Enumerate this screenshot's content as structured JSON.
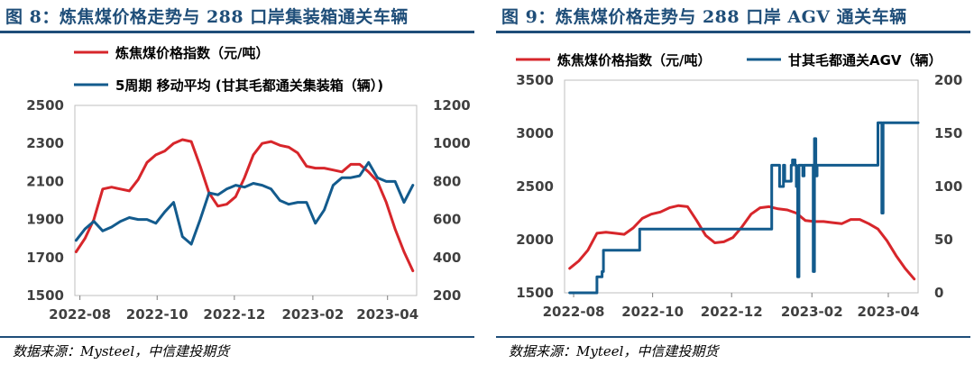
{
  "figures": [
    {
      "title": "图 8：炼焦煤价格走势与 288 口岸集装箱通关车辆",
      "source": "数据来源：Mysteel，中信建投期货"
    },
    {
      "title": "图 9：炼焦煤价格走势与 288 口岸 AGV 通关车辆",
      "source": "数据来源：Myteel，中信建投期货"
    }
  ],
  "colors": {
    "price": "#d7262b",
    "secondary": "#135b8d",
    "title": "#1f4e79"
  },
  "chart_data": [
    {
      "type": "line",
      "x_type": "date",
      "xticks": [
        "2022-08",
        "2022-10",
        "2022-12",
        "2023-02",
        "2023-04"
      ],
      "xlim": [
        "2022-07-28",
        "2023-04-24"
      ],
      "y_left": {
        "min": 1500,
        "max": 2500,
        "ticks": [
          1500,
          1700,
          1900,
          2100,
          2300,
          2500
        ]
      },
      "y_right": {
        "min": 200,
        "max": 1200,
        "ticks": [
          200,
          400,
          600,
          800,
          1000,
          1200
        ]
      },
      "legend_position": "top",
      "grid": false,
      "series": [
        {
          "name": "炼焦煤价格指数（元/吨）",
          "axis": "left",
          "color": "#d7262b",
          "x": [
            "2022-07-29",
            "2022-08-05",
            "2022-08-12",
            "2022-08-19",
            "2022-08-26",
            "2022-09-02",
            "2022-09-09",
            "2022-09-16",
            "2022-09-23",
            "2022-09-30",
            "2022-10-07",
            "2022-10-14",
            "2022-10-21",
            "2022-10-28",
            "2022-11-04",
            "2022-11-11",
            "2022-11-18",
            "2022-11-25",
            "2022-12-02",
            "2022-12-09",
            "2022-12-16",
            "2022-12-23",
            "2022-12-30",
            "2023-01-06",
            "2023-01-13",
            "2023-01-20",
            "2023-01-27",
            "2023-02-03",
            "2023-02-10",
            "2023-02-17",
            "2023-02-24",
            "2023-03-03",
            "2023-03-10",
            "2023-03-17",
            "2023-03-24",
            "2023-03-31",
            "2023-04-07",
            "2023-04-14",
            "2023-04-21"
          ],
          "y": [
            1730,
            1800,
            1900,
            2060,
            2070,
            2060,
            2050,
            2110,
            2200,
            2240,
            2260,
            2300,
            2320,
            2310,
            2180,
            2040,
            1970,
            1980,
            2020,
            2120,
            2240,
            2300,
            2310,
            2290,
            2280,
            2250,
            2180,
            2170,
            2170,
            2160,
            2150,
            2190,
            2190,
            2150,
            2100,
            1990,
            1850,
            1730,
            1630
          ]
        },
        {
          "name": "5周期 移动平均 (甘其毛都通关集装箱（辆）)",
          "axis": "right",
          "color": "#135b8d",
          "x": [
            "2022-07-29",
            "2022-08-05",
            "2022-08-12",
            "2022-08-19",
            "2022-08-26",
            "2022-09-02",
            "2022-09-09",
            "2022-09-16",
            "2022-09-23",
            "2022-09-30",
            "2022-10-07",
            "2022-10-14",
            "2022-10-21",
            "2022-10-28",
            "2022-11-04",
            "2022-11-11",
            "2022-11-18",
            "2022-11-25",
            "2022-12-02",
            "2022-12-09",
            "2022-12-16",
            "2022-12-23",
            "2022-12-30",
            "2023-01-06",
            "2023-01-13",
            "2023-01-20",
            "2023-01-27",
            "2023-02-03",
            "2023-02-10",
            "2023-02-17",
            "2023-02-24",
            "2023-03-03",
            "2023-03-10",
            "2023-03-17",
            "2023-03-24",
            "2023-03-31",
            "2023-04-07",
            "2023-04-14",
            "2023-04-21"
          ],
          "y": [
            490,
            550,
            590,
            540,
            560,
            590,
            610,
            600,
            600,
            580,
            640,
            690,
            510,
            470,
            600,
            740,
            730,
            760,
            780,
            770,
            790,
            780,
            760,
            700,
            680,
            690,
            690,
            580,
            650,
            780,
            820,
            820,
            830,
            900,
            820,
            800,
            800,
            690,
            780
          ]
        }
      ]
    },
    {
      "type": "line",
      "x_type": "date",
      "xticks": [
        "2022-08",
        "2022-10",
        "2022-12",
        "2023-02",
        "2023-04"
      ],
      "xlim": [
        "2022-07-25",
        "2023-04-24"
      ],
      "y_left": {
        "min": 1500,
        "max": 3500,
        "ticks": [
          1500,
          2000,
          2500,
          3000,
          3500
        ]
      },
      "y_right": {
        "min": 0,
        "max": 200,
        "ticks": [
          0,
          50,
          100,
          150,
          200
        ]
      },
      "legend_position": "top",
      "grid": false,
      "series": [
        {
          "name": "炼焦煤价格指数（元/吨）",
          "axis": "left",
          "color": "#d7262b",
          "x": [
            "2022-07-29",
            "2022-08-05",
            "2022-08-12",
            "2022-08-19",
            "2022-08-26",
            "2022-09-02",
            "2022-09-09",
            "2022-09-16",
            "2022-09-23",
            "2022-09-30",
            "2022-10-07",
            "2022-10-14",
            "2022-10-21",
            "2022-10-28",
            "2022-11-04",
            "2022-11-11",
            "2022-11-18",
            "2022-11-25",
            "2022-12-02",
            "2022-12-09",
            "2022-12-16",
            "2022-12-23",
            "2022-12-30",
            "2023-01-06",
            "2023-01-13",
            "2023-01-20",
            "2023-01-27",
            "2023-02-03",
            "2023-02-10",
            "2023-02-17",
            "2023-02-24",
            "2023-03-03",
            "2023-03-10",
            "2023-03-17",
            "2023-03-24",
            "2023-03-31",
            "2023-04-07",
            "2023-04-14",
            "2023-04-21"
          ],
          "y": [
            1730,
            1800,
            1900,
            2060,
            2070,
            2060,
            2050,
            2110,
            2200,
            2240,
            2260,
            2300,
            2320,
            2310,
            2180,
            2040,
            1970,
            1980,
            2020,
            2120,
            2240,
            2300,
            2310,
            2290,
            2280,
            2250,
            2180,
            2170,
            2170,
            2160,
            2150,
            2190,
            2190,
            2150,
            2100,
            1990,
            1850,
            1730,
            1630
          ]
        },
        {
          "name": "甘其毛都通关AGV（辆）",
          "axis": "right",
          "color": "#135b8d",
          "x": [
            "2022-07-29",
            "2022-08-18",
            "2022-08-19",
            "2022-08-23",
            "2022-08-24",
            "2022-09-20",
            "2022-09-21",
            "2022-12-31",
            "2023-01-01",
            "2023-01-06",
            "2023-01-07",
            "2023-01-10",
            "2023-01-11",
            "2023-01-16",
            "2023-01-17",
            "2023-01-19",
            "2023-01-20",
            "2023-01-21",
            "2023-01-22",
            "2023-01-24",
            "2023-01-25",
            "2023-01-26",
            "2023-02-01",
            "2023-02-02",
            "2023-02-03",
            "2023-02-04",
            "2023-02-05",
            "2023-03-23",
            "2023-03-24",
            "2023-03-25",
            "2023-03-27",
            "2023-03-28",
            "2023-03-29",
            "2023-04-24"
          ],
          "y": [
            0,
            0,
            15,
            20,
            40,
            40,
            60,
            60,
            120,
            120,
            100,
            120,
            105,
            120,
            125,
            120,
            100,
            15,
            120,
            120,
            110,
            120,
            120,
            20,
            145,
            110,
            120,
            120,
            160,
            160,
            75,
            160,
            160,
            160
          ]
        }
      ]
    }
  ],
  "ticks_text": {
    "left_y_left": [
      "2500",
      "2300",
      "2100",
      "1900",
      "1700",
      "1500"
    ],
    "left_y_right": [
      "1200",
      "1000",
      "800",
      "600",
      "400",
      "200"
    ],
    "right_y_left": [
      "3500",
      "3000",
      "2500",
      "2000",
      "1500"
    ],
    "right_y_right": [
      "200",
      "150",
      "100",
      "50",
      "0"
    ]
  }
}
